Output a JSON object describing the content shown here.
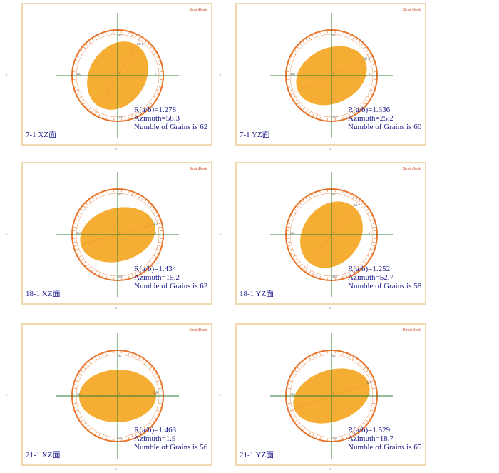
{
  "brand_label": "StrainDesk",
  "stat_prefixes": {
    "ratio": "R(a/b)=",
    "azimuth": "Azimuth=",
    "grains": "Numble of Grains is "
  },
  "ring_labels": {
    "top": "90",
    "right": "0",
    "bottom": "270",
    "left": "180"
  },
  "outer_label_left": "0",
  "outer_label_bottom": "0",
  "colors": {
    "ring": "#e8742a",
    "ellipse": "#f5a623",
    "axis": "#2e7d32",
    "frame": "#f0d9ae",
    "text": "#1a1a8a",
    "brand": "#cc3a1a"
  },
  "chart_data": [
    {
      "type": "strain-ellipse",
      "label": "7-1 XZ面",
      "ratio": "1.278",
      "azimuth": "58.3",
      "grains": "62",
      "ratio_value": 1.278,
      "azimuth_value": 58.3
    },
    {
      "type": "strain-ellipse",
      "label": "7-1 YZ面",
      "ratio": "1.336",
      "azimuth": "25.2",
      "grains": "60",
      "ratio_value": 1.336,
      "azimuth_value": 25.2
    },
    {
      "type": "strain-ellipse",
      "label": "18-1 XZ面",
      "ratio": "1.434",
      "azimuth": "15.2",
      "grains": "62",
      "ratio_value": 1.434,
      "azimuth_value": 15.2
    },
    {
      "type": "strain-ellipse",
      "label": "18-1 YZ面",
      "ratio": "1.252",
      "azimuth": "52.7",
      "grains": "58",
      "ratio_value": 1.252,
      "azimuth_value": 52.7
    },
    {
      "type": "strain-ellipse",
      "label": "21-1 XZ面",
      "ratio": "1.463",
      "azimuth": "1.9",
      "grains": "56",
      "ratio_value": 1.463,
      "azimuth_value": 1.9
    },
    {
      "type": "strain-ellipse",
      "label": "21-1 YZ面",
      "ratio": "1.529",
      "azimuth": "18.7",
      "grains": "65",
      "ratio_value": 1.529,
      "azimuth_value": 18.7
    }
  ]
}
